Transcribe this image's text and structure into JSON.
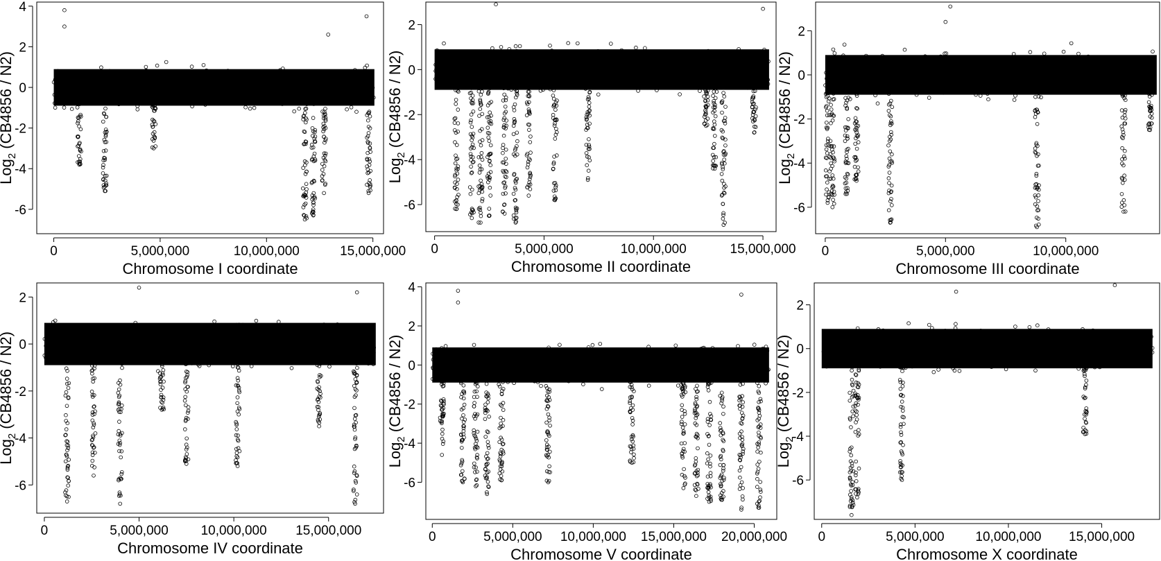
{
  "ylabel": {
    "prefix": "Log",
    "subscript": "2",
    "suffix": " (CB4856 / N2)"
  },
  "chart_data": [
    {
      "type": "scatter",
      "xlabel": "Chromosome I coordinate",
      "xlim": [
        -800000,
        15500000
      ],
      "ylim": [
        -7.2,
        4.2
      ],
      "xticks": [
        0,
        5000000,
        10000000,
        15000000
      ],
      "xtick_labels": [
        "0",
        "5,000,000",
        "10,000,000",
        "15,000,000"
      ],
      "yticks": [
        -6,
        -4,
        -2,
        0,
        2,
        4
      ],
      "ytick_labels": [
        "-6",
        "-4",
        "-2",
        "0",
        "2",
        "4"
      ],
      "xmax": 15070000,
      "drops": [
        [
          1200000,
          -3.8
        ],
        [
          2400000,
          -5.1
        ],
        [
          4700000,
          -3.0
        ],
        [
          11800000,
          -6.5
        ],
        [
          12200000,
          -6.3
        ],
        [
          12700000,
          -5.2
        ],
        [
          14800000,
          -5.2
        ]
      ],
      "highs": [
        [
          500000,
          3.8
        ],
        [
          500000,
          3.0
        ],
        [
          14700000,
          3.5
        ],
        [
          12900000,
          2.6
        ]
      ]
    },
    {
      "type": "scatter",
      "xlabel": "Chromosome II coordinate",
      "xlim": [
        -400000,
        15600000
      ],
      "ylim": [
        -7.2,
        3.0
      ],
      "xticks": [
        0,
        5000000,
        10000000,
        15000000
      ],
      "xtick_labels": [
        "0",
        "5,000,000",
        "10,000,000",
        "15,000,000"
      ],
      "yticks": [
        -6,
        -4,
        -2,
        0,
        2
      ],
      "ytick_labels": [
        "-6",
        "-4",
        "-2",
        "0",
        "2"
      ],
      "xmax": 15280000,
      "drops": [
        [
          1000000,
          -6.2
        ],
        [
          1700000,
          -6.6
        ],
        [
          2100000,
          -6.8
        ],
        [
          2500000,
          -6.5
        ],
        [
          3200000,
          -6.4
        ],
        [
          3700000,
          -6.8
        ],
        [
          4300000,
          -5.6
        ],
        [
          5500000,
          -5.8
        ],
        [
          7000000,
          -4.9
        ],
        [
          12400000,
          -2.5
        ],
        [
          12800000,
          -4.4
        ],
        [
          13200000,
          -6.9
        ],
        [
          14600000,
          -2.8
        ]
      ],
      "highs": [
        [
          2800000,
          2.9
        ],
        [
          15000000,
          2.7
        ]
      ]
    },
    {
      "type": "scatter",
      "xlabel": "Chromosome III coordinate",
      "xlim": [
        -400000,
        13900000
      ],
      "ylim": [
        -7.2,
        3.3
      ],
      "xticks": [
        0,
        5000000,
        10000000
      ],
      "xtick_labels": [
        "0",
        "5,000,000",
        "10,000,000"
      ],
      "yticks": [
        -6,
        -4,
        -2,
        0,
        2
      ],
      "ytick_labels": [
        "-6",
        "-4",
        "-2",
        "0",
        "2"
      ],
      "xmax": 13780000,
      "drops": [
        [
          100000,
          -5.8
        ],
        [
          300000,
          -6.0
        ],
        [
          900000,
          -5.4
        ],
        [
          1300000,
          -4.8
        ],
        [
          2700000,
          -6.7
        ],
        [
          8800000,
          -6.9
        ],
        [
          12400000,
          -6.2
        ],
        [
          13500000,
          -2.5
        ]
      ],
      "highs": [
        [
          5200000,
          3.1
        ],
        [
          5000000,
          2.4
        ]
      ]
    },
    {
      "type": "scatter",
      "xlabel": "Chromosome IV coordinate",
      "xlim": [
        -400000,
        17900000
      ],
      "ylim": [
        -7.2,
        2.6
      ],
      "xticks": [
        0,
        5000000,
        10000000,
        15000000
      ],
      "xtick_labels": [
        "0",
        "5,000,000",
        "10,000,000",
        "15,000,000"
      ],
      "yticks": [
        -6,
        -4,
        -2,
        0,
        2
      ],
      "ytick_labels": [
        "-6",
        "-4",
        "-2",
        "0",
        "2"
      ],
      "xmax": 17490000,
      "drops": [
        [
          1200000,
          -6.7
        ],
        [
          2600000,
          -5.6
        ],
        [
          4000000,
          -6.8
        ],
        [
          6200000,
          -2.8
        ],
        [
          7500000,
          -5.1
        ],
        [
          10200000,
          -5.2
        ],
        [
          14500000,
          -3.5
        ],
        [
          16400000,
          -6.8
        ]
      ],
      "highs": [
        [
          5000000,
          2.4
        ],
        [
          16500000,
          2.2
        ]
      ]
    },
    {
      "type": "scatter",
      "xlabel": "Chromosome V coordinate",
      "xlim": [
        -400000,
        21400000
      ],
      "ylim": [
        -7.9,
        4.2
      ],
      "xticks": [
        0,
        5000000,
        10000000,
        15000000,
        20000000
      ],
      "xtick_labels": [
        "0",
        "5,000,000",
        "10,000,000",
        "15,000,000",
        "20,000,000"
      ],
      "yticks": [
        -6,
        -4,
        -2,
        0,
        2,
        4
      ],
      "ytick_labels": [
        "-6",
        "-4",
        "-2",
        "0",
        "2",
        "4"
      ],
      "xmax": 20920000,
      "drops": [
        [
          600000,
          -4.6
        ],
        [
          1900000,
          -6.0
        ],
        [
          2700000,
          -6.2
        ],
        [
          3400000,
          -6.6
        ],
        [
          4300000,
          -5.9
        ],
        [
          7200000,
          -6.0
        ],
        [
          12400000,
          -5.0
        ],
        [
          15600000,
          -6.3
        ],
        [
          16400000,
          -6.7
        ],
        [
          17200000,
          -7.0
        ],
        [
          18000000,
          -6.9
        ],
        [
          19200000,
          -7.4
        ],
        [
          20300000,
          -7.3
        ]
      ],
      "highs": [
        [
          1600000,
          3.8
        ],
        [
          1600000,
          3.2
        ],
        [
          19200000,
          3.6
        ]
      ]
    },
    {
      "type": "scatter",
      "xlabel": "Chromosome X coordinate",
      "xlim": [
        -400000,
        18100000
      ],
      "ylim": [
        -7.8,
        3.0
      ],
      "xticks": [
        0,
        5000000,
        10000000,
        15000000
      ],
      "xtick_labels": [
        "0",
        "5,000,000",
        "10,000,000",
        "15,000,000"
      ],
      "yticks": [
        -6,
        -4,
        -2,
        0,
        2
      ],
      "ytick_labels": [
        "-6",
        "-4",
        "-2",
        "0",
        "2"
      ],
      "xmax": 17720000,
      "drops": [
        [
          1600000,
          -7.6
        ],
        [
          1900000,
          -6.8
        ],
        [
          4300000,
          -6.0
        ],
        [
          14100000,
          -3.9
        ]
      ],
      "highs": [
        [
          7200000,
          2.6
        ],
        [
          15700000,
          2.9
        ]
      ]
    }
  ]
}
